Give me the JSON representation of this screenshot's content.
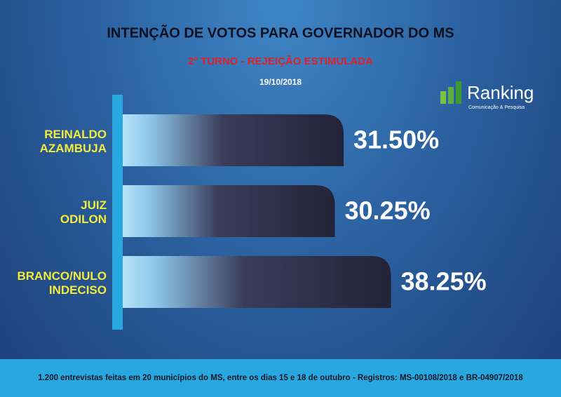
{
  "chart_data": {
    "type": "bar",
    "orientation": "horizontal",
    "title": "INTENÇÃO DE VOTOS PARA GOVERNADOR DO MS",
    "subtitle": "2º TURNO - REJEIÇÃO ESTIMULADA",
    "date": "19/10/2018",
    "categories": [
      "REINALDO\nAZAMBUJA",
      "JUIZ\nODILON",
      "BRANCO/NULO\nINDECISO"
    ],
    "values": [
      31.5,
      30.25,
      38.25
    ],
    "value_labels": [
      "31.50%",
      "30.25%",
      "38.25%"
    ],
    "logo": {
      "name": "Ranking",
      "tagline": "Comunicação & Pesquisa"
    },
    "footnote": "1.200 entrevistas feitas em 20 municípios do MS, entre os dias 15 e 18 de outubro - Registros: MS-00108/2018 e BR-04907/2018"
  }
}
